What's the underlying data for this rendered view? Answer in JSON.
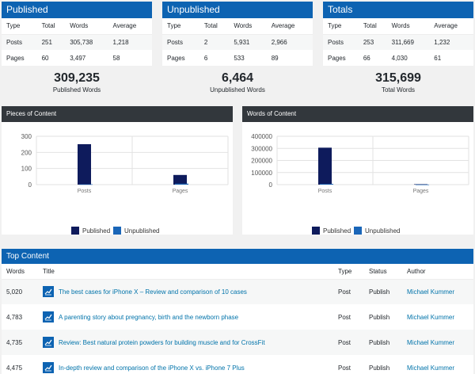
{
  "published": {
    "title": "Published",
    "headers": [
      "Type",
      "Total",
      "Words",
      "Average"
    ],
    "rows": [
      [
        "Posts",
        "251",
        "305,738",
        "1,218"
      ],
      [
        "Pages",
        "60",
        "3,497",
        "58"
      ]
    ],
    "big_number": "309,235",
    "big_label": "Published Words"
  },
  "unpublished": {
    "title": "Unpublished",
    "headers": [
      "Type",
      "Total",
      "Words",
      "Average"
    ],
    "rows": [
      [
        "Posts",
        "2",
        "5,931",
        "2,966"
      ],
      [
        "Pages",
        "6",
        "533",
        "89"
      ]
    ],
    "big_number": "6,464",
    "big_label": "Unpublished Words"
  },
  "totals": {
    "title": "Totals",
    "headers": [
      "Type",
      "Total",
      "Words",
      "Average"
    ],
    "rows": [
      [
        "Posts",
        "253",
        "311,669",
        "1,232"
      ],
      [
        "Pages",
        "66",
        "4,030",
        "61"
      ]
    ],
    "big_number": "315,699",
    "big_label": "Total Words"
  },
  "colors": {
    "published": "#0e1b5c",
    "unpublished": "#1a66b8",
    "header_blue": "#0d63b2"
  },
  "chart_data": [
    {
      "type": "bar",
      "title": "Pieces of Content",
      "categories": [
        "Posts",
        "Pages"
      ],
      "series": [
        {
          "name": "Published",
          "values": [
            251,
            60
          ]
        },
        {
          "name": "Unpublished",
          "values": [
            2,
            6
          ]
        }
      ],
      "ylim": [
        0,
        300
      ],
      "yticks": [
        "300",
        "200",
        "100",
        "0"
      ],
      "ytick_values": [
        300,
        200,
        100,
        0
      ],
      "legend_position": "bottom"
    },
    {
      "type": "bar",
      "title": "Words of Content",
      "categories": [
        "Posts",
        "Pages"
      ],
      "series": [
        {
          "name": "Published",
          "values": [
            305738,
            3497
          ]
        },
        {
          "name": "Unpublished",
          "values": [
            5931,
            533
          ]
        }
      ],
      "ylim": [
        0,
        400000
      ],
      "yticks": [
        "400000",
        "300000",
        "200000",
        "100000",
        "0"
      ],
      "ytick_values": [
        400000,
        300000,
        200000,
        100000,
        0
      ],
      "legend_position": "bottom"
    }
  ],
  "top_content": {
    "title": "Top Content",
    "headers": [
      "Words",
      "Title",
      "Type",
      "Status",
      "Author"
    ],
    "rows": [
      {
        "words": "5,020",
        "title": "The best cases for iPhone X – Review and comparison of 10 cases",
        "type": "Post",
        "status": "Publish",
        "author": "Michael Kummer"
      },
      {
        "words": "4,783",
        "title": "A parenting story about pregnancy, birth and the newborn phase",
        "type": "Post",
        "status": "Publish",
        "author": "Michael Kummer"
      },
      {
        "words": "4,735",
        "title": "Review: Best natural protein powders for building muscle and for CrossFit",
        "type": "Post",
        "status": "Publish",
        "author": "Michael Kummer"
      },
      {
        "words": "4,475",
        "title": "In-depth review and comparison of the iPhone X vs. iPhone 7 Plus",
        "type": "Post",
        "status": "Publish",
        "author": "Michael Kummer"
      }
    ]
  }
}
